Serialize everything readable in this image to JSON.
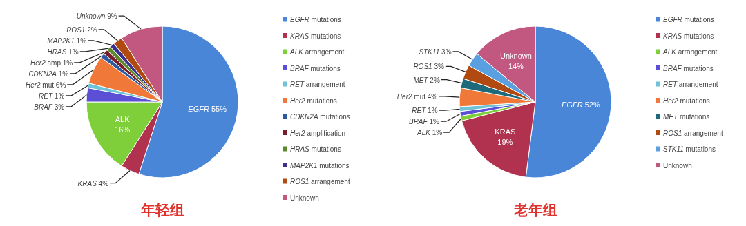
{
  "chart_data": [
    {
      "type": "pie",
      "title": "年轻组",
      "legend": "right",
      "categories": [
        "EGFR mutations",
        "KRAS mutations",
        "ALK arrangement",
        "BRAF mutations",
        "RET arrangement",
        "Her2 mutations",
        "CDKN2A mutations",
        "Her2 amplification",
        "HRAS mutations",
        "MAP2K1 mutations",
        "ROS1 arrangement",
        "Unknown"
      ],
      "values": [
        55,
        4,
        16,
        3,
        1,
        6,
        1,
        1,
        1,
        1,
        2,
        9
      ],
      "colors": [
        "#4a86d8",
        "#b0324f",
        "#7fcf3a",
        "#5b4fd6",
        "#6fc3d8",
        "#f0793a",
        "#2c5aa0",
        "#7a1e2e",
        "#5a8a2a",
        "#3b2f8f",
        "#b04a10",
        "#c2577f"
      ],
      "value_labels": [
        "EGFR 55%",
        "KRAS 4%",
        "ALK 16%",
        "BRAF 3%",
        "RET 1%",
        "Her2 mut 6%",
        "CDKN2A 1%",
        "Her2 amp 1%",
        "HRAS 1%",
        "MAP2K1 1%",
        "ROS1 2%",
        "Unknown 9%"
      ]
    },
    {
      "type": "pie",
      "title": "老年组",
      "legend": "right",
      "categories": [
        "EGFR mutations",
        "KRAS mutations",
        "ALK arrangement",
        "BRAF mutations",
        "RET arrangement",
        "Her2 mutations",
        "MET mutations",
        "ROS1 arrangement",
        "STK11 mutations",
        "Unknown"
      ],
      "values": [
        52,
        19,
        1,
        1,
        1,
        4,
        2,
        3,
        3,
        14
      ],
      "colors": [
        "#4a86d8",
        "#b0324f",
        "#7fcf3a",
        "#5b4fd6",
        "#6fc3d8",
        "#f0793a",
        "#1f6a7a",
        "#b04a10",
        "#5aa0e0",
        "#c2577f"
      ],
      "value_labels": [
        "EGFR 52%",
        "KRAS 19%",
        "ALK 1%",
        "BRAF 1%",
        "RET 1%",
        "Her2 mut 4%",
        "MET 2%",
        "ROS1 3%",
        "STK11 3%",
        "Unknown 14%"
      ]
    }
  ]
}
